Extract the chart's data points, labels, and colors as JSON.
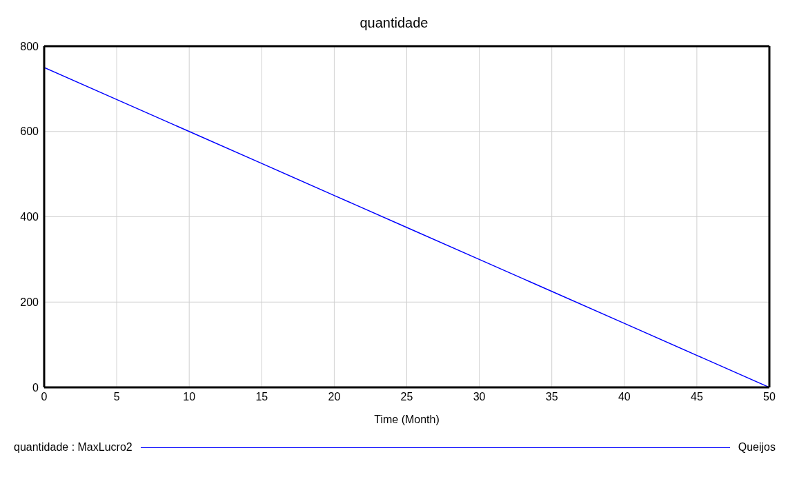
{
  "chart_data": {
    "type": "line",
    "title": "quantidade",
    "xlabel": "Time (Month)",
    "x": [
      0,
      5,
      10,
      15,
      20,
      25,
      30,
      35,
      40,
      45,
      50
    ],
    "series": [
      {
        "name": "quantidade : MaxLucro2",
        "color": "#0000ff",
        "values": [
          750,
          675,
          600,
          525,
          450,
          375,
          300,
          225,
          150,
          75,
          0
        ]
      }
    ],
    "xlim": [
      0,
      50
    ],
    "xticks": [
      0,
      5,
      10,
      15,
      20,
      25,
      30,
      35,
      40,
      45,
      50
    ],
    "ylim": [
      0,
      800
    ],
    "yticks": [
      0,
      200,
      400,
      600,
      800
    ],
    "grid": true,
    "legend": "bottom",
    "annotations": [
      "Queijos"
    ]
  }
}
